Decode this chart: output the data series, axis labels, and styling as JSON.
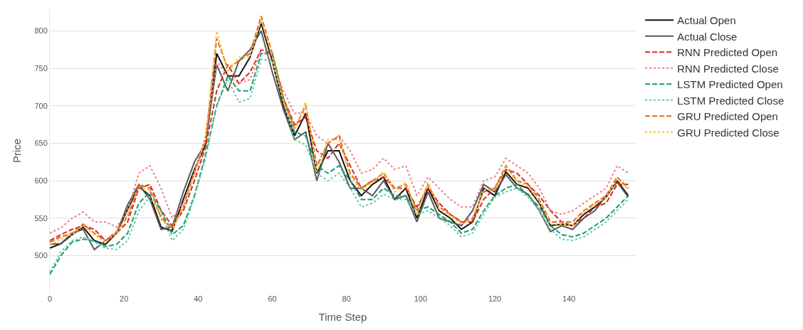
{
  "chart_data": {
    "type": "line",
    "xlabel": "Time Step",
    "ylabel": "Price",
    "x": [
      0,
      3,
      6,
      9,
      12,
      15,
      18,
      21,
      24,
      27,
      30,
      33,
      36,
      39,
      42,
      45,
      48,
      51,
      54,
      57,
      60,
      63,
      66,
      69,
      72,
      75,
      78,
      81,
      84,
      87,
      90,
      93,
      96,
      99,
      102,
      105,
      108,
      111,
      114,
      117,
      120,
      123,
      126,
      129,
      132,
      135,
      138,
      141,
      144,
      147,
      150,
      153,
      156
    ],
    "xlim": [
      0,
      158
    ],
    "xticks": [
      0,
      20,
      40,
      60,
      80,
      100,
      120,
      140
    ],
    "ylim": [
      450,
      830
    ],
    "yticks": [
      500,
      550,
      600,
      650,
      700,
      750,
      800
    ],
    "grid": "y",
    "legend": "top right",
    "series": [
      {
        "name": "Actual Open",
        "color": "#111111",
        "line_style": "solid",
        "values": [
          510,
          516,
          528,
          538,
          520,
          515,
          530,
          562,
          592,
          580,
          538,
          533,
          575,
          615,
          648,
          770,
          740,
          740,
          765,
          810,
          760,
          700,
          660,
          690,
          610,
          640,
          640,
          600,
          580,
          595,
          605,
          575,
          590,
          550,
          590,
          560,
          550,
          535,
          545,
          590,
          580,
          612,
          595,
          590,
          570,
          540,
          542,
          540,
          555,
          565,
          578,
          600,
          580
        ]
      },
      {
        "name": "Actual Close",
        "color": "#5a5a5a",
        "line_style": "solid",
        "values": [
          515,
          516,
          530,
          535,
          508,
          520,
          530,
          568,
          595,
          575,
          535,
          538,
          585,
          625,
          650,
          755,
          720,
          760,
          775,
          800,
          745,
          695,
          655,
          665,
          600,
          650,
          625,
          590,
          590,
          580,
          600,
          575,
          580,
          545,
          585,
          550,
          545,
          540,
          560,
          595,
          585,
          608,
          590,
          582,
          560,
          532,
          540,
          535,
          550,
          560,
          580,
          598,
          578
        ]
      },
      {
        "name": "RNN Predicted Open",
        "color": "#d62728",
        "line_style": "dashed",
        "values": [
          520,
          528,
          535,
          540,
          535,
          520,
          530,
          545,
          590,
          595,
          560,
          540,
          560,
          600,
          645,
          720,
          755,
          730,
          745,
          775,
          770,
          710,
          675,
          685,
          640,
          630,
          650,
          620,
          590,
          600,
          605,
          590,
          590,
          565,
          590,
          570,
          555,
          545,
          545,
          575,
          590,
          615,
          610,
          595,
          580,
          560,
          545,
          540,
          550,
          565,
          570,
          595,
          595
        ]
      },
      {
        "name": "RNN Predicted Close",
        "color": "#f08080",
        "line_style": "dotted",
        "values": [
          530,
          537,
          550,
          558,
          545,
          545,
          538,
          560,
          610,
          620,
          590,
          550,
          570,
          610,
          660,
          760,
          740,
          730,
          735,
          775,
          760,
          720,
          690,
          690,
          660,
          650,
          660,
          640,
          610,
          615,
          630,
          615,
          620,
          580,
          605,
          590,
          575,
          565,
          565,
          600,
          605,
          630,
          620,
          610,
          590,
          560,
          555,
          560,
          570,
          580,
          590,
          620,
          610
        ]
      },
      {
        "name": "LSTM Predicted Open",
        "color": "#1a9a7a",
        "line_style": "dashed",
        "values": [
          475,
          500,
          518,
          522,
          520,
          512,
          515,
          530,
          570,
          585,
          560,
          528,
          540,
          580,
          635,
          700,
          740,
          720,
          720,
          770,
          770,
          710,
          665,
          660,
          620,
          610,
          620,
          600,
          575,
          575,
          590,
          580,
          580,
          560,
          565,
          555,
          545,
          530,
          535,
          560,
          580,
          590,
          595,
          580,
          565,
          540,
          528,
          525,
          530,
          540,
          550,
          565,
          580
        ]
      },
      {
        "name": "LSTM Predicted Close",
        "color": "#66cc99",
        "line_style": "dotted",
        "values": [
          478,
          505,
          520,
          525,
          518,
          510,
          508,
          520,
          560,
          578,
          555,
          520,
          535,
          578,
          630,
          700,
          735,
          705,
          710,
          762,
          760,
          705,
          655,
          648,
          610,
          600,
          610,
          590,
          565,
          570,
          582,
          575,
          575,
          555,
          560,
          550,
          540,
          525,
          530,
          555,
          578,
          585,
          590,
          578,
          560,
          535,
          522,
          520,
          525,
          535,
          545,
          560,
          575
        ]
      },
      {
        "name": "GRU Predicted Open",
        "color": "#e8681a",
        "line_style": "dashed",
        "values": [
          518,
          525,
          530,
          542,
          530,
          520,
          532,
          552,
          595,
          590,
          550,
          538,
          565,
          610,
          655,
          790,
          750,
          760,
          770,
          820,
          770,
          710,
          670,
          700,
          620,
          650,
          660,
          610,
          590,
          600,
          610,
          590,
          595,
          560,
          595,
          565,
          555,
          545,
          550,
          585,
          590,
          620,
          600,
          595,
          575,
          545,
          545,
          545,
          560,
          570,
          580,
          605,
          590
        ]
      },
      {
        "name": "GRU Predicted Close",
        "color": "#f2c12e",
        "line_style": "dotted",
        "values": [
          515,
          522,
          528,
          540,
          528,
          518,
          530,
          555,
          592,
          588,
          548,
          535,
          565,
          612,
          655,
          800,
          745,
          765,
          765,
          815,
          765,
          705,
          668,
          705,
          612,
          655,
          655,
          605,
          588,
          598,
          612,
          585,
          598,
          555,
          598,
          562,
          552,
          542,
          548,
          588,
          588,
          618,
          598,
          592,
          572,
          542,
          542,
          540,
          558,
          568,
          578,
          602,
          588
        ]
      }
    ]
  }
}
